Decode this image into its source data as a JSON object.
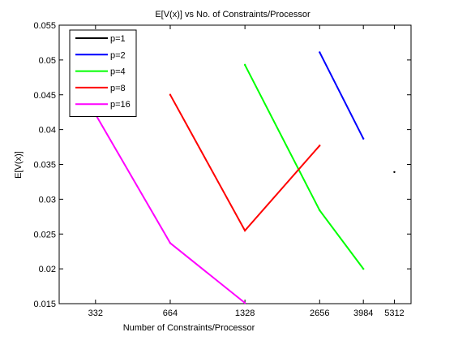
{
  "chart_data": {
    "type": "line",
    "title": "E[V(x)] vs No. of Constraints/Processor",
    "xlabel": "Number of Constraints/Processor",
    "ylabel": "E[V(x)]",
    "x_ticks": [
      332,
      664,
      1328,
      2656,
      3984,
      5312
    ],
    "x_tick_labels": [
      "332",
      "664",
      "1328",
      "2656",
      "3984",
      "5312"
    ],
    "x_axis_scale": "log2",
    "xlim": [
      237,
      6200
    ],
    "ylim": [
      0.015,
      0.055
    ],
    "y_ticks": [
      0.015,
      0.02,
      0.025,
      0.03,
      0.035,
      0.04,
      0.045,
      0.05,
      0.055
    ],
    "y_tick_labels": [
      "0.015",
      "0.02",
      "0.025",
      "0.03",
      "0.035",
      "0.04",
      "0.045",
      "0.05",
      "0.055"
    ],
    "grid": false,
    "legend_position": "top-left",
    "series": [
      {
        "name": "p=1",
        "color": "#000000",
        "x": [
          5312
        ],
        "y": [
          0.0339
        ]
      },
      {
        "name": "p=2",
        "color": "#0000ff",
        "x": [
          2656,
          3984
        ],
        "y": [
          0.0511,
          0.0387
        ]
      },
      {
        "name": "p=4",
        "color": "#00ff00",
        "x": [
          1328,
          2656,
          3984
        ],
        "y": [
          0.0493,
          0.0284,
          0.02
        ]
      },
      {
        "name": "p=8",
        "color": "#ff0000",
        "x": [
          664,
          1328,
          2656
        ],
        "y": [
          0.045,
          0.0255,
          0.0377
        ]
      },
      {
        "name": "p=16",
        "color": "#ff00ff",
        "x": [
          332,
          664,
          1328
        ],
        "y": [
          0.0422,
          0.0237,
          0.0151
        ]
      }
    ]
  }
}
